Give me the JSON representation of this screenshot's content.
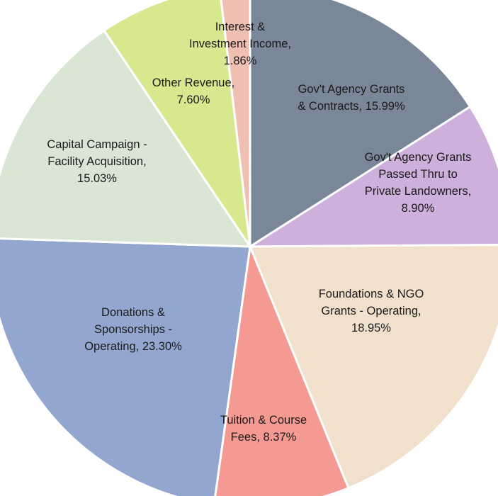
{
  "chart_data": {
    "type": "pie",
    "title": "",
    "slices": [
      {
        "label": "Gov't Agency Grants & Contracts",
        "value": 15.99,
        "value_label": "15.99%",
        "color": "#7a8799"
      },
      {
        "label": "Gov't Agency Grants Passed Thru to Private Landowners",
        "value": 8.9,
        "value_label": "8.90%",
        "color": "#cdb0dc"
      },
      {
        "label": "Foundations & NGO Grants - Operating",
        "value": 18.95,
        "value_label": "18.95%",
        "color": "#f1e1cc"
      },
      {
        "label": "Tuition & Course Fees",
        "value": 8.37,
        "value_label": "8.37%",
        "color": "#f49a92"
      },
      {
        "label": "Donations & Sponsorships - Operating",
        "value": 23.3,
        "value_label": "23.30%",
        "color": "#92a6cf"
      },
      {
        "label": "Capital Campaign - Facility Acquisition",
        "value": 15.03,
        "value_label": "15.03%",
        "color": "#d8e6d3"
      },
      {
        "label": "Other Revenue",
        "value": 7.6,
        "value_label": "7.60%",
        "color": "#d8e88e"
      },
      {
        "label": "Interest & Investment Income",
        "value": 1.86,
        "value_label": "1.86%",
        "color": "#efc0b2"
      }
    ],
    "label_lines": [
      [
        "Gov't Agency Grants",
        "& Contracts, 15.99%"
      ],
      [
        "Gov't Agency Grants",
        "Passed Thru to",
        "Private Landowners,",
        "8.90%"
      ],
      [
        "Foundations & NGO",
        "Grants - Operating,",
        "18.95%"
      ],
      [
        "Tuition & Course",
        "Fees, 8.37%"
      ],
      [
        "Donations &",
        "Sponsorships -",
        "Operating, 23.30%"
      ],
      [
        "Capital Campaign -",
        "Facility Acquisition,",
        "15.03%"
      ],
      [
        "Other Revenue,",
        "7.60%"
      ],
      [
        "Interest &",
        "Investment Income,",
        "1.86%"
      ]
    ]
  }
}
